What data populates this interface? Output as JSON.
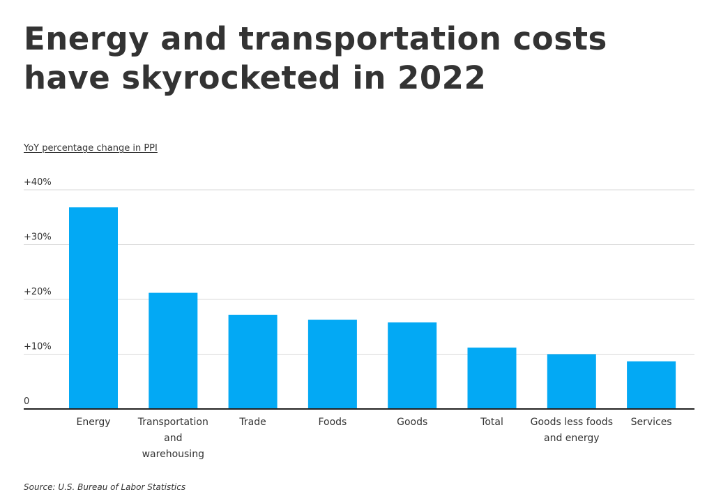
{
  "chart_data": {
    "type": "bar",
    "title": "Energy and transportation costs have skyrocketed in 2022",
    "ylabel": "YoY percentage change in PPI",
    "xlabel": "",
    "categories": [
      "Energy",
      "Transportation and warehousing",
      "Trade",
      "Foods",
      "Goods",
      "Total",
      "Goods less foods and energy",
      "Services"
    ],
    "values": [
      36.8,
      21.2,
      17.2,
      16.3,
      15.8,
      11.2,
      10.0,
      8.7
    ],
    "ylim": [
      0,
      40
    ],
    "yticks": [
      {
        "value": 0,
        "label": "0"
      },
      {
        "value": 10,
        "label": "+10%"
      },
      {
        "value": 20,
        "label": "+20%"
      },
      {
        "value": 30,
        "label": "+30%"
      },
      {
        "value": 40,
        "label": "+40%"
      }
    ],
    "bar_color": "#03a9f4",
    "grid": true,
    "source": "Source:  U.S. Bureau of Labor Statistics"
  }
}
